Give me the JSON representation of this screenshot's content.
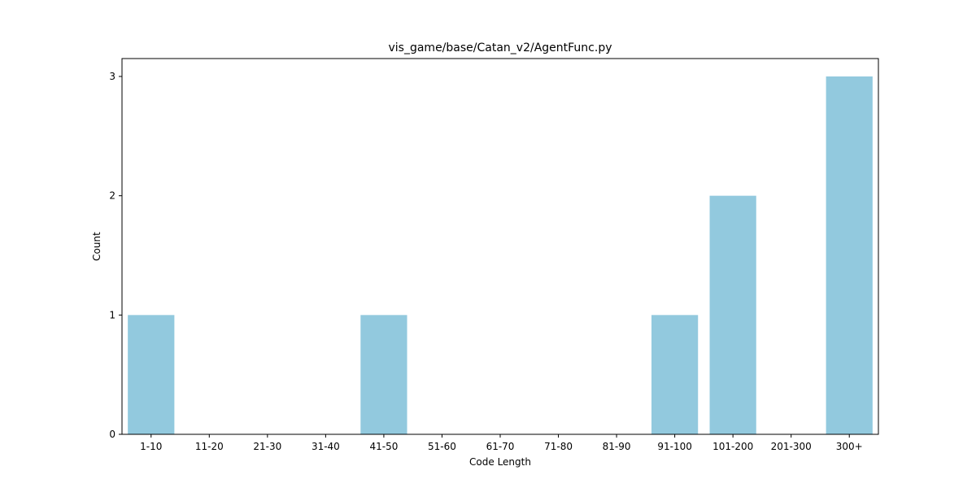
{
  "chart_data": {
    "type": "bar",
    "title": "vis_game/base/Catan_v2/AgentFunc.py",
    "xlabel": "Code Length",
    "ylabel": "Count",
    "categories": [
      "1-10",
      "11-20",
      "21-30",
      "31-40",
      "41-50",
      "51-60",
      "61-70",
      "71-80",
      "81-90",
      "91-100",
      "101-200",
      "201-300",
      "300+"
    ],
    "values": [
      1,
      0,
      0,
      0,
      1,
      0,
      0,
      0,
      0,
      1,
      2,
      0,
      3
    ],
    "ylim": [
      0,
      3.15
    ],
    "yticks": [
      "0",
      "1",
      "2",
      "3"
    ],
    "bar_color": "#92c9de",
    "grid": false,
    "legend": "none"
  }
}
